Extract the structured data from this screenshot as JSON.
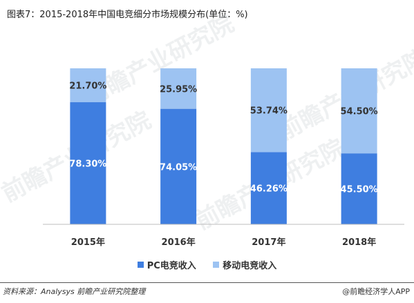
{
  "title": "图表7：2015-2018年中国电竞细分市场规模分布(单位：%)",
  "source": "资料来源：Analysys 前瞻产业研究院整理",
  "brand": "@前瞻经济学人APP",
  "watermark": "前瞻产业研究院",
  "colors": {
    "pc": "#3F7EE0",
    "mobile": "#9DC3F2"
  },
  "chart_data": {
    "type": "bar",
    "stacked": true,
    "categories": [
      "2015年",
      "2016年",
      "2017年",
      "2018年"
    ],
    "series": [
      {
        "name": "PC电竞收入",
        "values": [
          78.3,
          74.05,
          46.26,
          45.5
        ],
        "labels": [
          "78.30%",
          "74.05%",
          "46.26%",
          "45.50%"
        ]
      },
      {
        "name": "移动电竞收入",
        "values": [
          21.7,
          25.95,
          53.74,
          54.5
        ],
        "labels": [
          "21.70%",
          "25.95%",
          "53.74%",
          "54.50%"
        ]
      }
    ],
    "ylim": [
      0,
      100
    ],
    "grid": false,
    "legend_position": "bottom"
  }
}
